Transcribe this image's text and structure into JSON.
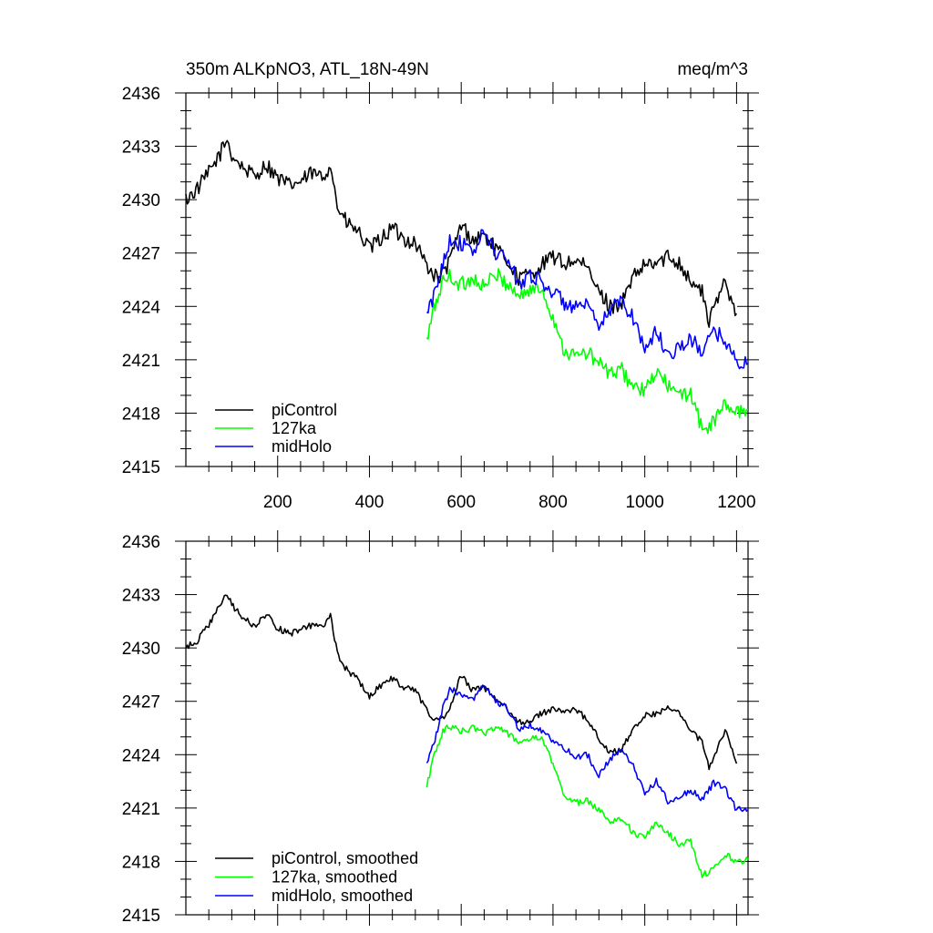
{
  "header": {
    "title": "350m ALKpNO3, ATL_18N-49N",
    "units": "meq/m^3"
  },
  "chart_data": [
    {
      "type": "line",
      "title": "350m ALKpNO3, ATL_18N-49N",
      "units": "meq/m^3",
      "xlim": [
        0,
        1225
      ],
      "ylim": [
        2415,
        2436
      ],
      "x_ticks": [
        200,
        400,
        600,
        800,
        1000,
        1200
      ],
      "y_ticks": [
        2415,
        2418,
        2421,
        2424,
        2427,
        2430,
        2433,
        2436
      ],
      "grid": false,
      "legend_position": "lower-left",
      "series": [
        {
          "name": "piControl",
          "color": "#000000",
          "x": [
            0,
            25,
            50,
            75,
            90,
            100,
            125,
            150,
            175,
            200,
            225,
            250,
            275,
            300,
            315,
            330,
            350,
            375,
            400,
            425,
            450,
            475,
            500,
            525,
            550,
            575,
            600,
            625,
            650,
            675,
            700,
            725,
            750,
            775,
            800,
            825,
            850,
            875,
            900,
            925,
            950,
            975,
            1000,
            1025,
            1050,
            1075,
            1100,
            1125,
            1140,
            1150,
            1175,
            1200
          ],
          "y": [
            2430.0,
            2430.6,
            2431.5,
            2432.6,
            2433.4,
            2432.5,
            2431.8,
            2431.3,
            2432.0,
            2431.2,
            2430.8,
            2431.0,
            2431.5,
            2431.2,
            2432.1,
            2429.6,
            2428.7,
            2428.2,
            2427.2,
            2427.8,
            2428.4,
            2427.8,
            2427.6,
            2426.3,
            2425.5,
            2426.5,
            2428.6,
            2427.7,
            2428.0,
            2427.2,
            2426.6,
            2425.6,
            2425.8,
            2426.3,
            2426.8,
            2426.4,
            2426.6,
            2426.1,
            2424.8,
            2424.0,
            2424.2,
            2425.6,
            2426.3,
            2426.4,
            2426.8,
            2426.5,
            2425.4,
            2424.8,
            2423.1,
            2423.8,
            2425.5,
            2423.6
          ]
        },
        {
          "name": "127ka",
          "color": "#00ff00",
          "x": [
            525,
            540,
            560,
            575,
            600,
            625,
            650,
            675,
            700,
            725,
            750,
            775,
            800,
            825,
            850,
            875,
            900,
            925,
            950,
            975,
            1000,
            1025,
            1050,
            1075,
            1100,
            1125,
            1150,
            1175,
            1200,
            1225
          ],
          "y": [
            2422.0,
            2423.8,
            2425.4,
            2425.7,
            2425.2,
            2425.6,
            2425.1,
            2425.8,
            2425.3,
            2424.6,
            2424.9,
            2425.0,
            2423.4,
            2421.5,
            2421.2,
            2421.4,
            2420.8,
            2420.2,
            2420.4,
            2419.5,
            2419.2,
            2420.3,
            2419.6,
            2418.9,
            2419.2,
            2417.0,
            2417.5,
            2418.5,
            2418.0,
            2418.2
          ]
        },
        {
          "name": "midHolo",
          "color": "#0000ff",
          "x": [
            525,
            540,
            560,
            575,
            600,
            625,
            650,
            675,
            700,
            725,
            750,
            775,
            800,
            825,
            850,
            875,
            900,
            925,
            950,
            975,
            1000,
            1025,
            1050,
            1075,
            1100,
            1125,
            1150,
            1175,
            1200,
            1225
          ],
          "y": [
            2423.5,
            2424.5,
            2426.5,
            2427.8,
            2427.5,
            2427.0,
            2428.2,
            2427.0,
            2426.7,
            2425.3,
            2425.8,
            2425.4,
            2424.8,
            2424.2,
            2423.9,
            2424.0,
            2422.7,
            2423.9,
            2424.3,
            2423.4,
            2421.6,
            2422.6,
            2421.3,
            2421.7,
            2422.1,
            2421.5,
            2422.5,
            2422.2,
            2420.8,
            2420.8
          ]
        }
      ],
      "legend": [
        "piControl",
        "127ka",
        "midHolo"
      ]
    },
    {
      "type": "line",
      "title": "",
      "xlim": [
        0,
        1225
      ],
      "ylim": [
        2415,
        2436
      ],
      "x_ticks": [
        200,
        400,
        600,
        800,
        1000,
        1200
      ],
      "y_ticks": [
        2415,
        2418,
        2421,
        2424,
        2427,
        2430,
        2433,
        2436
      ],
      "grid": false,
      "legend_position": "lower-left",
      "series": [
        {
          "name": "piControl, smoothed",
          "color": "#000000",
          "x": [
            0,
            25,
            50,
            75,
            90,
            100,
            125,
            150,
            175,
            200,
            225,
            250,
            275,
            300,
            315,
            330,
            350,
            375,
            400,
            425,
            450,
            475,
            500,
            525,
            550,
            575,
            600,
            625,
            650,
            675,
            700,
            725,
            750,
            775,
            800,
            825,
            850,
            875,
            900,
            925,
            950,
            975,
            1000,
            1025,
            1050,
            1075,
            1100,
            1125,
            1140,
            1150,
            1175,
            1200
          ],
          "y": [
            2430.0,
            2430.4,
            2431.3,
            2432.4,
            2433.1,
            2432.4,
            2431.7,
            2431.2,
            2431.9,
            2431.1,
            2430.8,
            2431.0,
            2431.3,
            2431.1,
            2431.9,
            2429.7,
            2428.8,
            2428.2,
            2427.3,
            2427.9,
            2428.3,
            2427.8,
            2427.6,
            2426.5,
            2425.8,
            2426.5,
            2428.5,
            2427.6,
            2427.8,
            2427.1,
            2426.6,
            2425.8,
            2425.9,
            2426.3,
            2426.6,
            2426.4,
            2426.5,
            2426.0,
            2424.9,
            2424.1,
            2424.3,
            2425.5,
            2426.2,
            2426.3,
            2426.6,
            2426.4,
            2425.4,
            2424.7,
            2423.2,
            2423.8,
            2425.4,
            2423.5
          ]
        },
        {
          "name": "127ka, smoothed",
          "color": "#00ff00",
          "x": [
            525,
            540,
            560,
            575,
            600,
            625,
            650,
            675,
            700,
            725,
            750,
            775,
            800,
            825,
            850,
            875,
            900,
            925,
            950,
            975,
            1000,
            1025,
            1050,
            1075,
            1100,
            1125,
            1150,
            1175,
            1200,
            1225
          ],
          "y": [
            2422.2,
            2423.9,
            2425.3,
            2425.6,
            2425.3,
            2425.5,
            2425.2,
            2425.6,
            2425.2,
            2424.7,
            2424.9,
            2424.9,
            2423.5,
            2421.7,
            2421.3,
            2421.4,
            2420.9,
            2420.3,
            2420.4,
            2419.6,
            2419.3,
            2420.2,
            2419.6,
            2419.0,
            2419.1,
            2417.2,
            2417.6,
            2418.4,
            2418.0,
            2418.1
          ]
        },
        {
          "name": "midHolo, smoothed",
          "color": "#0000ff",
          "x": [
            525,
            540,
            560,
            575,
            600,
            625,
            650,
            675,
            700,
            725,
            750,
            775,
            800,
            825,
            850,
            875,
            900,
            925,
            950,
            975,
            1000,
            1025,
            1050,
            1075,
            1100,
            1125,
            1150,
            1175,
            1200,
            1225
          ],
          "y": [
            2423.6,
            2424.6,
            2426.6,
            2427.7,
            2427.4,
            2427.1,
            2428.0,
            2427.0,
            2426.6,
            2425.4,
            2425.7,
            2425.3,
            2424.8,
            2424.3,
            2423.9,
            2424.0,
            2422.8,
            2423.8,
            2424.2,
            2423.4,
            2421.8,
            2422.5,
            2421.4,
            2421.6,
            2422.0,
            2421.5,
            2422.4,
            2422.1,
            2420.9,
            2420.9
          ]
        }
      ],
      "legend": [
        "piControl, smoothed",
        "127ka, smoothed",
        "midHolo, smoothed"
      ]
    }
  ]
}
